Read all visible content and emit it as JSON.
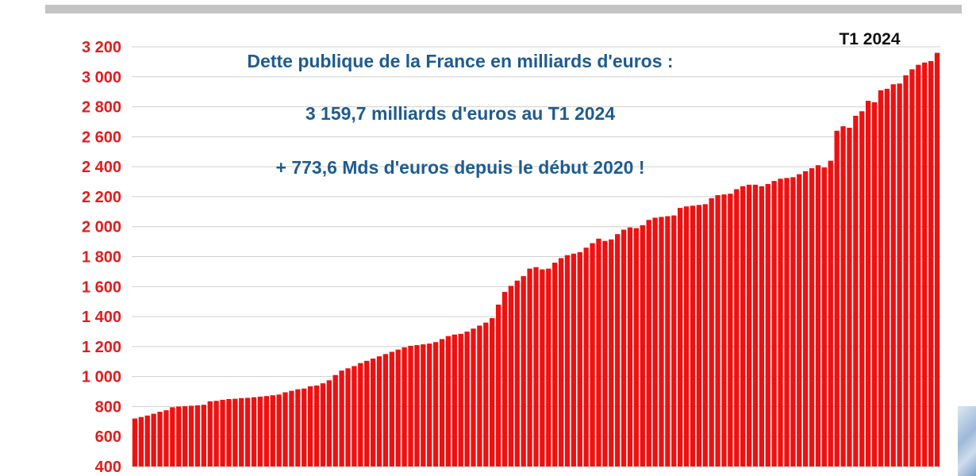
{
  "colors": {
    "bar": "#ee1111",
    "tick_labels": "#e11c1c",
    "title": "#1f5b8f",
    "grid": "#cfcfcf",
    "top_rule": "#c4c4c4"
  },
  "annotations": {
    "title_line1": "Dette publique de la France en milliards d'euros :",
    "title_line2": "3 159,7 milliards d'euros au T1 2024",
    "title_line3": "+ 773,6 Mds d'euros depuis le début 2020 !",
    "period": "T1 2024"
  },
  "chart_data": {
    "type": "bar",
    "title": "Dette publique de la France en milliards d'euros :",
    "xlabel": "",
    "ylabel": "",
    "ylim": [
      400,
      3200
    ],
    "yticks": [
      400,
      600,
      800,
      1000,
      1200,
      1400,
      1600,
      1800,
      2000,
      2200,
      2400,
      2600,
      2800,
      3000,
      3200
    ],
    "ytick_labels": [
      "400",
      "600",
      "800",
      "1 000",
      "1 200",
      "1 400",
      "1 600",
      "1 800",
      "2 000",
      "2 200",
      "2 400",
      "2 600",
      "2 800",
      "3 000",
      "3 200"
    ],
    "grid": true,
    "last_category_label": "T1 2024",
    "values": [
      720,
      730,
      740,
      752,
      765,
      775,
      795,
      800,
      802,
      805,
      808,
      812,
      835,
      838,
      845,
      850,
      852,
      856,
      858,
      862,
      866,
      870,
      875,
      880,
      895,
      905,
      915,
      920,
      935,
      940,
      955,
      975,
      1010,
      1040,
      1055,
      1070,
      1090,
      1105,
      1120,
      1135,
      1150,
      1165,
      1180,
      1195,
      1205,
      1210,
      1215,
      1220,
      1230,
      1250,
      1270,
      1280,
      1285,
      1300,
      1320,
      1340,
      1360,
      1390,
      1480,
      1565,
      1605,
      1640,
      1670,
      1720,
      1730,
      1715,
      1720,
      1760,
      1790,
      1810,
      1820,
      1830,
      1860,
      1890,
      1920,
      1905,
      1915,
      1950,
      1980,
      1995,
      1990,
      2010,
      2045,
      2060,
      2065,
      2070,
      2075,
      2125,
      2135,
      2140,
      2145,
      2150,
      2190,
      2210,
      2215,
      2220,
      2250,
      2270,
      2280,
      2280,
      2270,
      2285,
      2305,
      2320,
      2325,
      2330,
      2350,
      2370,
      2390,
      2410,
      2395,
      2440,
      2640,
      2670,
      2660,
      2740,
      2770,
      2840,
      2830,
      2910,
      2920,
      2950,
      2955,
      3010,
      3050,
      3080,
      3095,
      3105,
      3160
    ]
  }
}
